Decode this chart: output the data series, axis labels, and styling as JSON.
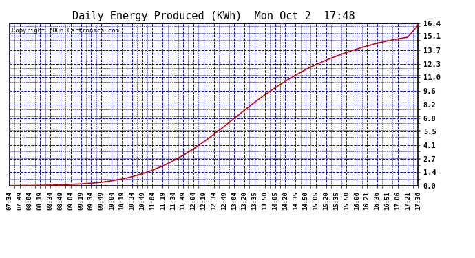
{
  "title": "Daily Energy Produced (KWh)  Mon Oct 2  17:48",
  "copyright": "Copyright 2006 Cartronics.com",
  "background_color": "#ffffff",
  "plot_bg_color": "#ffffff",
  "line_color": "#cc0000",
  "grid_color": "#0000cc",
  "yticks": [
    0.0,
    1.4,
    2.7,
    4.1,
    5.5,
    6.8,
    8.2,
    9.6,
    11.0,
    12.3,
    13.7,
    15.1,
    16.4
  ],
  "ymax": 16.4,
  "ymin": 0.0,
  "x_labels": [
    "07:34",
    "07:49",
    "08:04",
    "08:19",
    "08:34",
    "08:49",
    "09:04",
    "09:19",
    "09:34",
    "09:49",
    "10:04",
    "10:19",
    "10:34",
    "10:49",
    "11:04",
    "11:19",
    "11:34",
    "11:49",
    "12:04",
    "12:19",
    "12:34",
    "12:49",
    "13:04",
    "13:20",
    "13:35",
    "13:50",
    "14:05",
    "14:20",
    "14:35",
    "14:50",
    "15:05",
    "15:20",
    "15:35",
    "15:50",
    "16:06",
    "16:21",
    "16:36",
    "16:51",
    "17:06",
    "17:21",
    "17:36"
  ],
  "curve_y": [
    0.02,
    0.03,
    0.04,
    0.05,
    0.07,
    0.1,
    0.14,
    0.19,
    0.26,
    0.35,
    0.5,
    0.68,
    0.92,
    1.22,
    1.58,
    2.0,
    2.5,
    3.08,
    3.72,
    4.42,
    5.18,
    5.98,
    6.8,
    7.62,
    8.42,
    9.18,
    9.88,
    10.55,
    11.15,
    11.72,
    12.22,
    12.68,
    13.08,
    13.45,
    13.8,
    14.1,
    14.38,
    14.62,
    14.82,
    15.0,
    16.2
  ],
  "title_fontsize": 11,
  "copyright_fontsize": 6.5,
  "tick_fontsize": 6.5,
  "ytick_fontsize": 7.5
}
